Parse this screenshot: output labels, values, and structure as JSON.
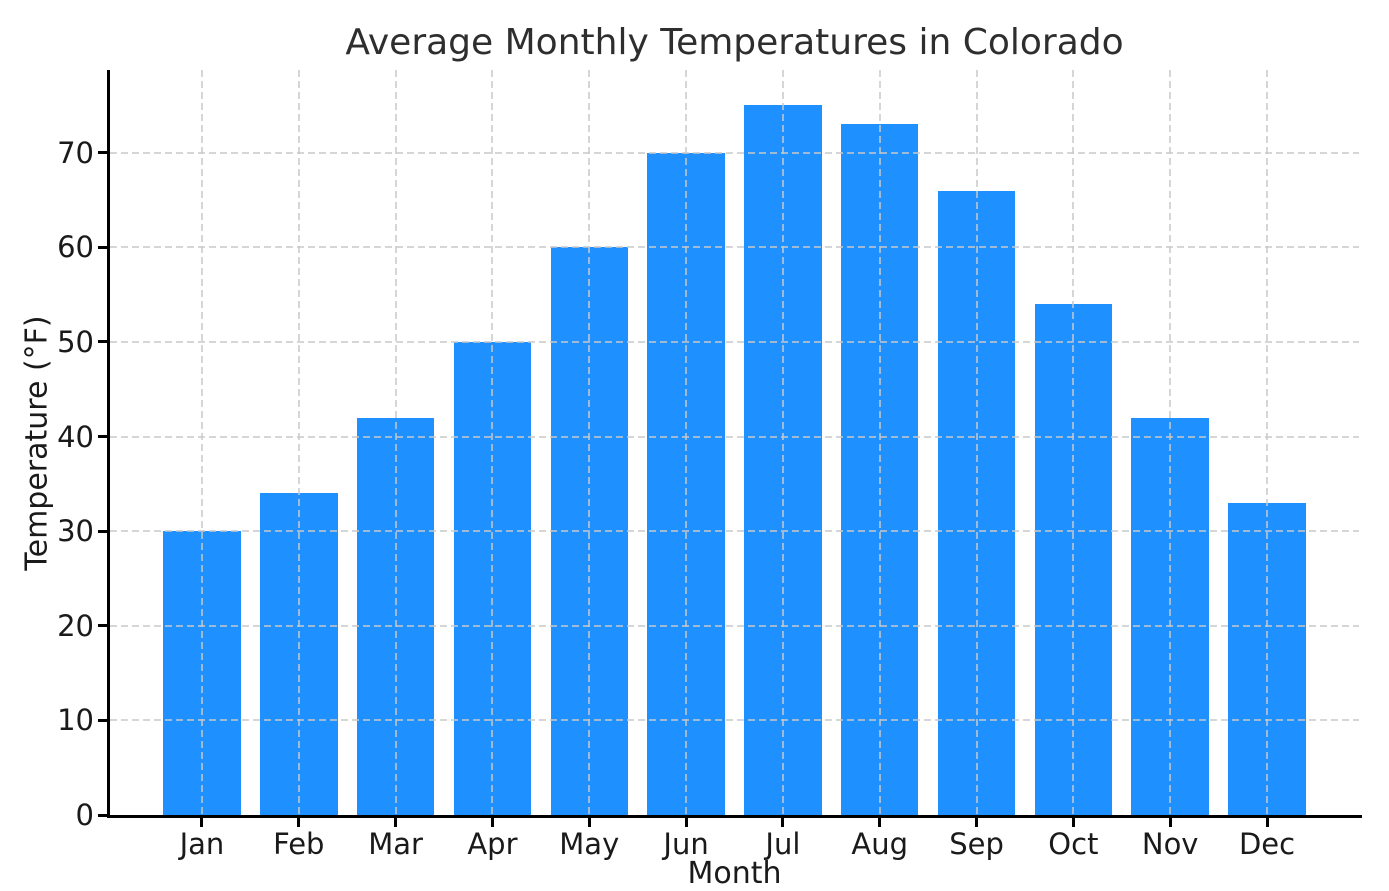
{
  "chart_data": {
    "type": "bar",
    "title": "Average Monthly Temperatures in Colorado",
    "xlabel": "Month",
    "ylabel": "Temperature (°F)",
    "categories": [
      "Jan",
      "Feb",
      "Mar",
      "Apr",
      "May",
      "Jun",
      "Jul",
      "Aug",
      "Sep",
      "Oct",
      "Nov",
      "Dec"
    ],
    "values": [
      30,
      34,
      42,
      50,
      60,
      70,
      75,
      73,
      66,
      54,
      42,
      33
    ],
    "ylim": [
      0,
      78.75
    ],
    "yticks": [
      0,
      10,
      20,
      30,
      40,
      50,
      60,
      70
    ],
    "grid": true,
    "grid_style": "dashed",
    "legend": "none",
    "bar_color": "#1E90FF",
    "grid_color": "#C8C8C8",
    "axis_color": "#000000",
    "text_color": "#1A1A1A",
    "title_color": "#2E2E2E"
  }
}
